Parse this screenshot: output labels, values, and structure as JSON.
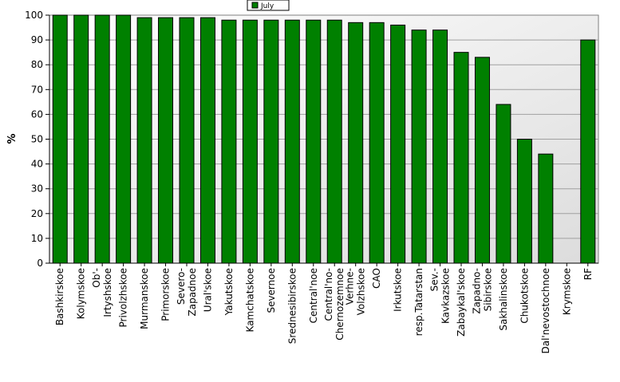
{
  "chart_data": {
    "type": "bar",
    "title": "",
    "xlabel": "",
    "ylabel": "%",
    "ylim": [
      0,
      100
    ],
    "yticks": [
      0,
      10,
      20,
      30,
      40,
      50,
      60,
      70,
      80,
      90,
      100
    ],
    "grid": true,
    "legend_position": "top-center",
    "bar_color": "#008000",
    "series": [
      {
        "name": "July",
        "values": [
          100,
          100,
          100,
          100,
          99,
          99,
          99,
          99,
          98,
          98,
          98,
          98,
          98,
          98,
          97,
          97,
          96,
          94,
          94,
          85,
          83,
          64,
          50,
          44,
          0,
          90
        ]
      }
    ],
    "categories": [
      "Bashkirskoe",
      "Kolymskoe",
      "Ob'-Irtyshskoe",
      "Privolzhskoe",
      "Murmanskoe",
      "Primorskoe",
      "Severo-Zapadnoe",
      "Ural'skoe",
      "Yakutskoe",
      "Kamchatskoe",
      "Severnoe",
      "Srednesibirskoe",
      "Central'noe",
      "Central'no-Chernozemnoe",
      "Verhne-Volzhskoe",
      "CAO",
      "Irkutskoe",
      "resp.Tatarstan",
      "Sev.-Kavkazskoe",
      "Zabaykal'skoe",
      "Zapadno-Sibirskoe",
      "Sakhalinskoe",
      "Chukotskoe",
      "Dal'nevostochnoe",
      "Krymskoe",
      "RF"
    ],
    "category_label_lines": [
      [
        "Bashkirskoe"
      ],
      [
        "Kolymskoe"
      ],
      [
        "Ob'-",
        "Irtyshskoe"
      ],
      [
        "Privolzhskoe"
      ],
      [
        "Murmanskoe"
      ],
      [
        "Primorskoe"
      ],
      [
        "Severo-",
        "Zapadnoe"
      ],
      [
        "Ural'skoe"
      ],
      [
        "Yakutskoe"
      ],
      [
        "Kamchatskoe"
      ],
      [
        "Severnoe"
      ],
      [
        "Srednesibirskoe"
      ],
      [
        "Central'noe"
      ],
      [
        "Central'no-",
        "Chernozemnoe"
      ],
      [
        "Verhne-",
        "Volzhskoe"
      ],
      [
        "CAO"
      ],
      [
        "Irkutskoe"
      ],
      [
        "resp.Tatarstan"
      ],
      [
        "Sev.-",
        "Kavkazskoe"
      ],
      [
        "Zabaykal'skoe"
      ],
      [
        "Zapadno-",
        "Sibirskoe"
      ],
      [
        "Sakhalinskoe"
      ],
      [
        "Chukotskoe"
      ],
      [
        "Dal'nevostochnoe"
      ],
      [
        "Krymskoe"
      ],
      [
        "RF"
      ]
    ]
  }
}
